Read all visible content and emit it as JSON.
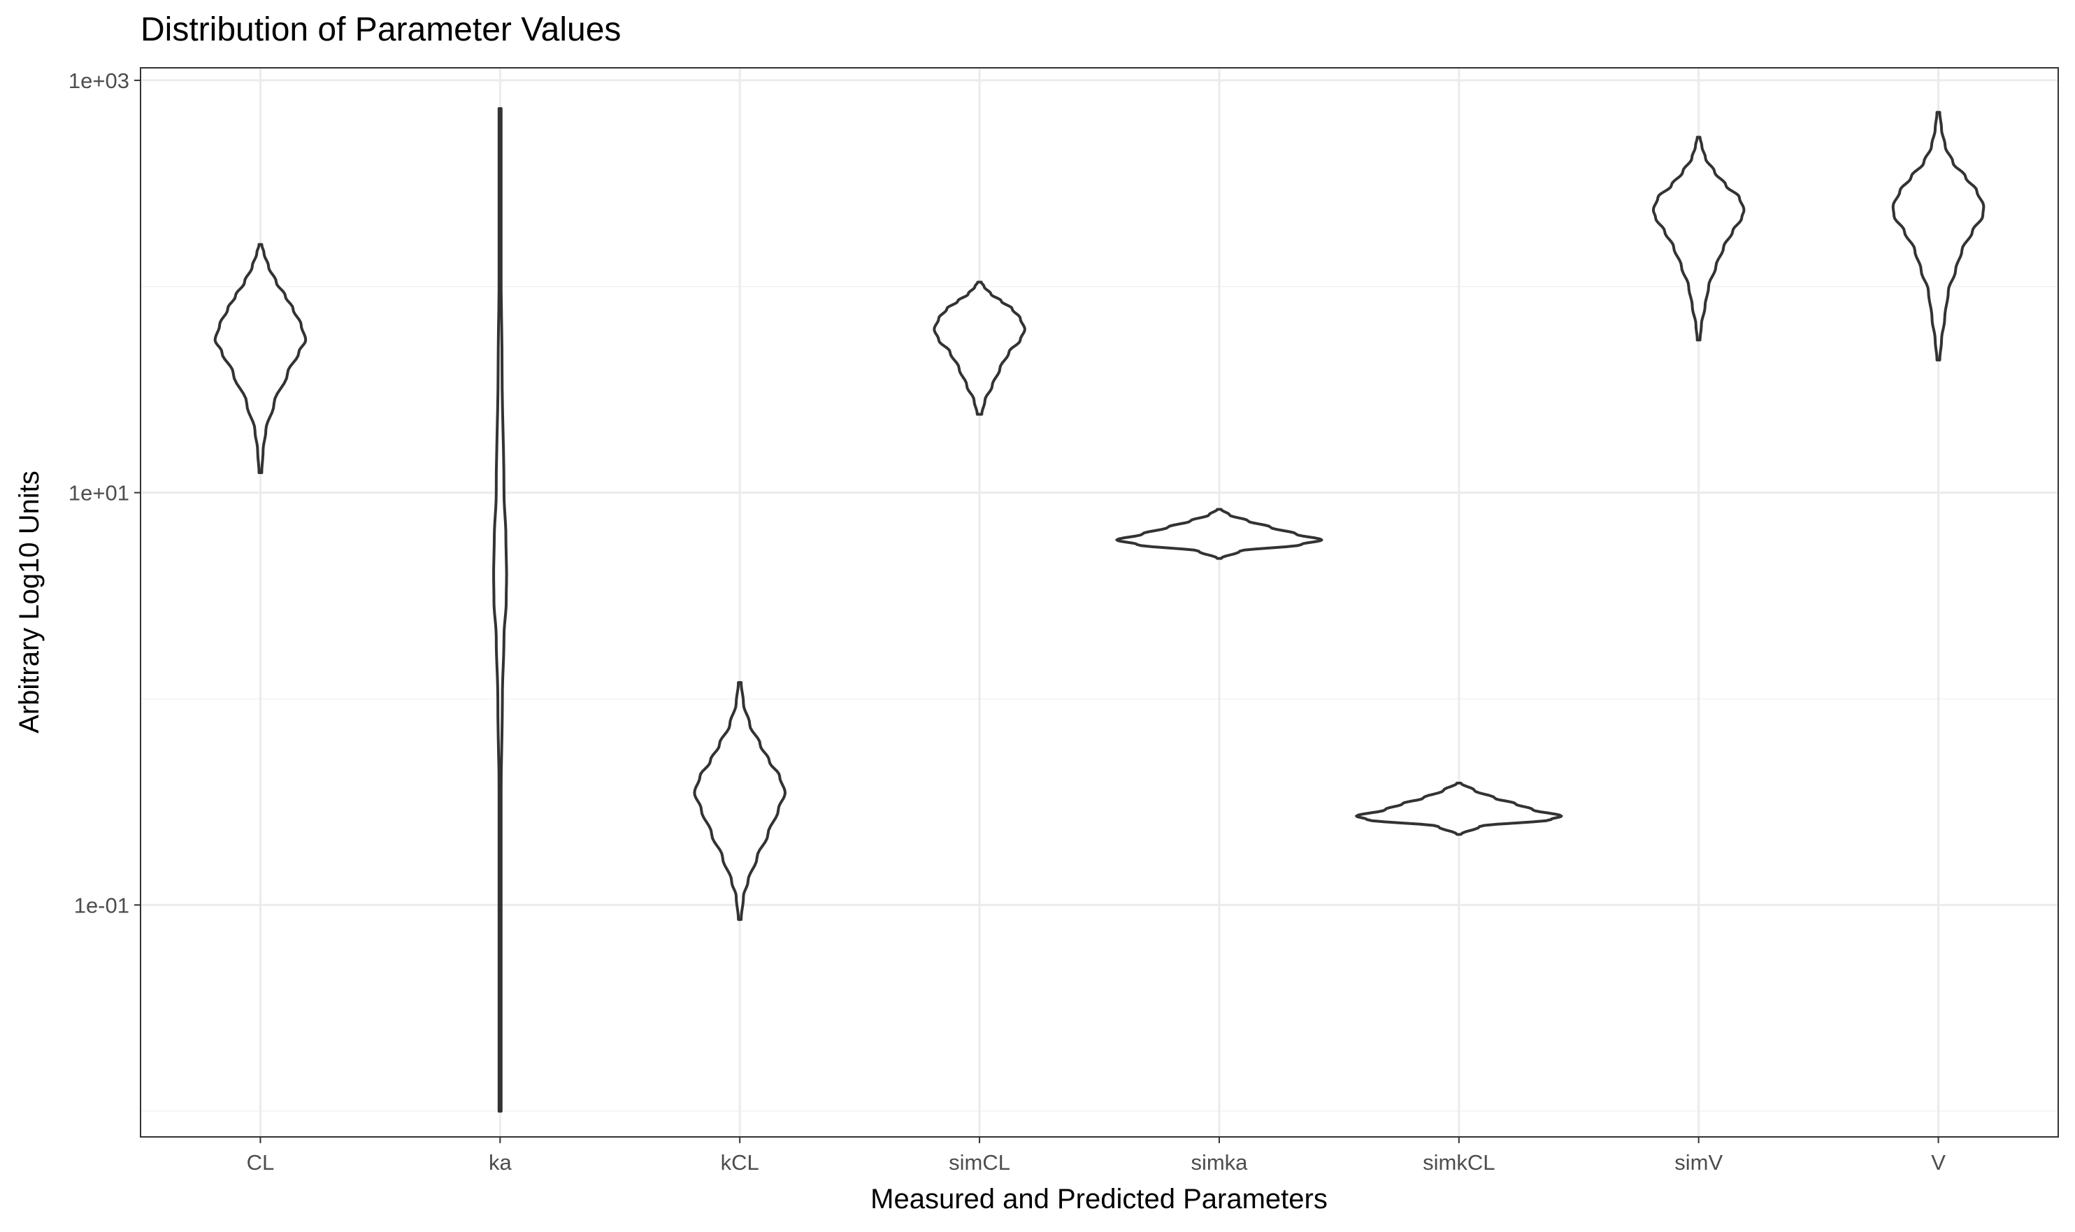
{
  "chart_data": {
    "type": "violin",
    "title": "Distribution of Parameter Values",
    "xlabel": "Measured and Predicted Parameters",
    "ylabel": "Arbitrary Log10 Units",
    "y_scale": "log10",
    "ylim": [
      0.0075,
      1150
    ],
    "y_ticks": [
      0.1,
      10,
      1000
    ],
    "y_tick_labels": [
      "1e-01",
      "1e+01",
      "1e+03"
    ],
    "grid": true,
    "categories": [
      "CL",
      "ka",
      "kCL",
      "simCL",
      "simka",
      "simkCL",
      "simV",
      "V"
    ],
    "violins": [
      {
        "category": "CL",
        "min": 12.5,
        "max": 160,
        "profile": [
          [
            12.5,
            0.03
          ],
          [
            16,
            0.06
          ],
          [
            20,
            0.12
          ],
          [
            27,
            0.3
          ],
          [
            38,
            0.6
          ],
          [
            48,
            0.85
          ],
          [
            55,
            1.0
          ],
          [
            65,
            0.9
          ],
          [
            78,
            0.72
          ],
          [
            90,
            0.55
          ],
          [
            105,
            0.35
          ],
          [
            125,
            0.18
          ],
          [
            145,
            0.08
          ],
          [
            160,
            0.03
          ]
        ]
      },
      {
        "category": "ka",
        "min": 0.01,
        "max": 730,
        "profile": [
          [
            0.01,
            0.02
          ],
          [
            0.05,
            0.05
          ],
          [
            0.3,
            0.12
          ],
          [
            1,
            0.35
          ],
          [
            2,
            0.6
          ],
          [
            3,
            0.95
          ],
          [
            4,
            1.0
          ],
          [
            6,
            0.9
          ],
          [
            10,
            0.6
          ],
          [
            40,
            0.3
          ],
          [
            150,
            0.1
          ],
          [
            400,
            0.05
          ],
          [
            730,
            0.02
          ]
        ]
      },
      {
        "category": "kCL",
        "min": 0.085,
        "max": 1.2,
        "profile": [
          [
            0.085,
            0.03
          ],
          [
            0.11,
            0.08
          ],
          [
            0.13,
            0.18
          ],
          [
            0.17,
            0.38
          ],
          [
            0.22,
            0.62
          ],
          [
            0.29,
            0.85
          ],
          [
            0.35,
            1.0
          ],
          [
            0.42,
            0.88
          ],
          [
            0.5,
            0.65
          ],
          [
            0.6,
            0.45
          ],
          [
            0.75,
            0.22
          ],
          [
            0.95,
            0.08
          ],
          [
            1.2,
            0.03
          ]
        ]
      },
      {
        "category": "simCL",
        "min": 24,
        "max": 105,
        "profile": [
          [
            24,
            0.05
          ],
          [
            28,
            0.12
          ],
          [
            33,
            0.28
          ],
          [
            40,
            0.45
          ],
          [
            48,
            0.65
          ],
          [
            55,
            0.9
          ],
          [
            62,
            1.0
          ],
          [
            70,
            0.9
          ],
          [
            78,
            0.72
          ],
          [
            85,
            0.48
          ],
          [
            92,
            0.25
          ],
          [
            100,
            0.1
          ],
          [
            105,
            0.04
          ]
        ]
      },
      {
        "category": "simka",
        "min": 4.8,
        "max": 8.3,
        "profile": [
          [
            4.8,
            0.02
          ],
          [
            5.2,
            0.2
          ],
          [
            5.6,
            0.8
          ],
          [
            5.9,
            1.0
          ],
          [
            6.3,
            0.75
          ],
          [
            6.8,
            0.5
          ],
          [
            7.3,
            0.28
          ],
          [
            7.8,
            0.1
          ],
          [
            8.3,
            0.02
          ]
        ]
      },
      {
        "category": "simkCL",
        "min": 0.22,
        "max": 0.39,
        "profile": [
          [
            0.22,
            0.02
          ],
          [
            0.24,
            0.2
          ],
          [
            0.26,
            0.9
          ],
          [
            0.27,
            1.0
          ],
          [
            0.29,
            0.72
          ],
          [
            0.31,
            0.55
          ],
          [
            0.33,
            0.35
          ],
          [
            0.36,
            0.15
          ],
          [
            0.39,
            0.02
          ]
        ]
      },
      {
        "category": "simV",
        "min": 55,
        "max": 530,
        "profile": [
          [
            55,
            0.03
          ],
          [
            65,
            0.06
          ],
          [
            80,
            0.14
          ],
          [
            100,
            0.22
          ],
          [
            125,
            0.38
          ],
          [
            155,
            0.55
          ],
          [
            185,
            0.75
          ],
          [
            215,
            0.95
          ],
          [
            235,
            1.0
          ],
          [
            270,
            0.9
          ],
          [
            310,
            0.6
          ],
          [
            360,
            0.35
          ],
          [
            420,
            0.15
          ],
          [
            480,
            0.07
          ],
          [
            530,
            0.03
          ]
        ]
      },
      {
        "category": "V",
        "min": 44,
        "max": 700,
        "profile": [
          [
            44,
            0.03
          ],
          [
            55,
            0.07
          ],
          [
            70,
            0.14
          ],
          [
            95,
            0.22
          ],
          [
            120,
            0.38
          ],
          [
            150,
            0.52
          ],
          [
            185,
            0.75
          ],
          [
            220,
            0.98
          ],
          [
            245,
            1.0
          ],
          [
            290,
            0.85
          ],
          [
            340,
            0.6
          ],
          [
            400,
            0.32
          ],
          [
            480,
            0.15
          ],
          [
            580,
            0.07
          ],
          [
            700,
            0.03
          ]
        ]
      }
    ]
  }
}
